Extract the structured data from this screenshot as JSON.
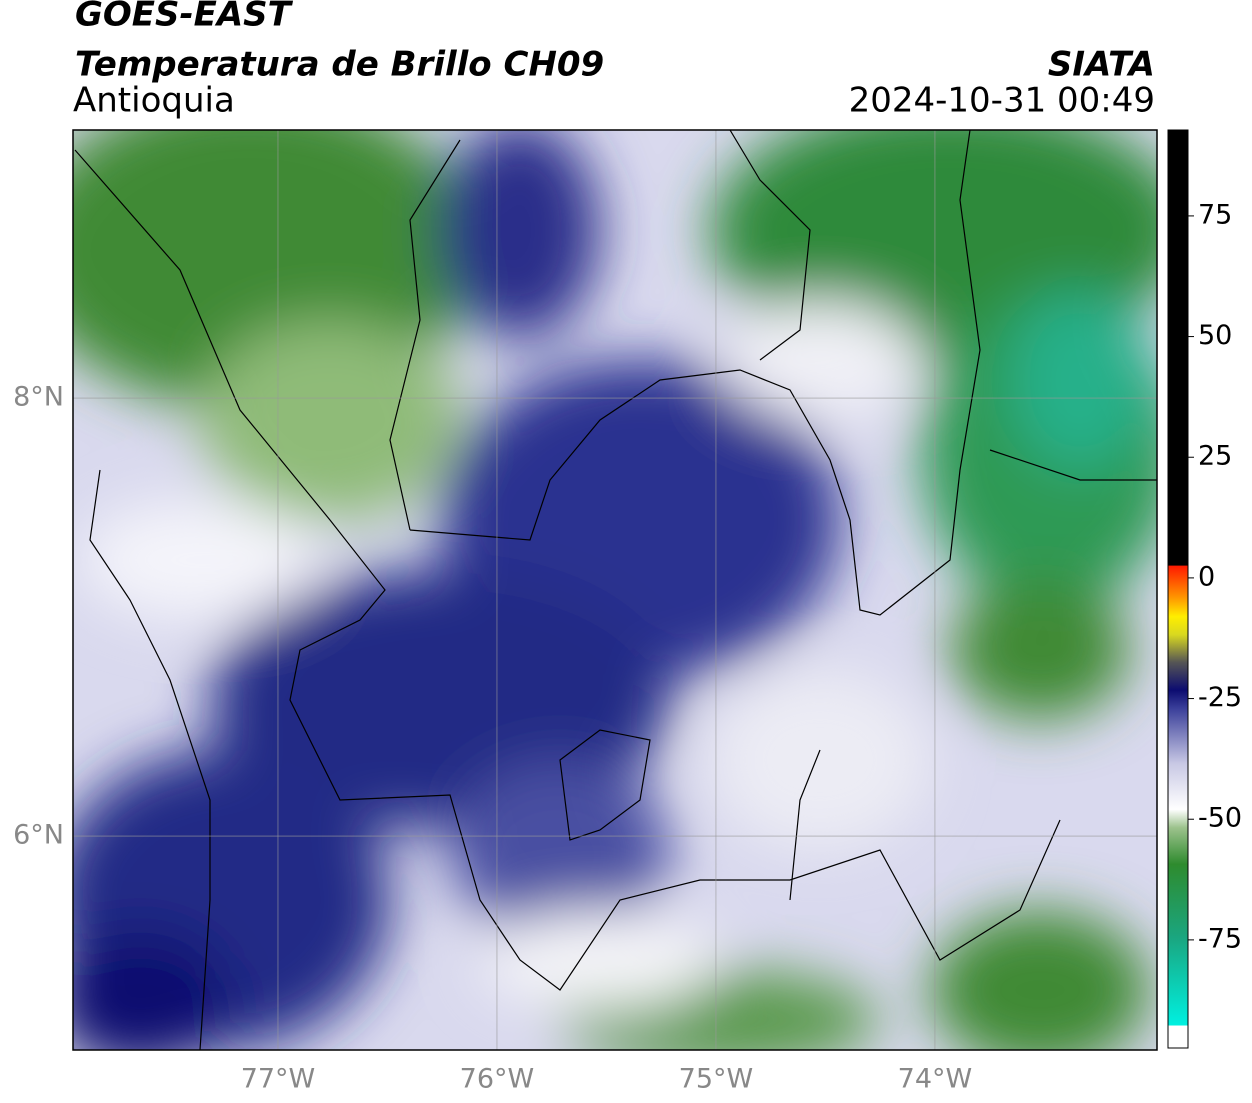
{
  "header": {
    "line1": "GOES-EAST",
    "line2": "Temperatura de Brillo CH09",
    "source": "SIATA",
    "region": "Antioquia",
    "datetime": "2024-10-31 00:49"
  },
  "map": {
    "xlim": [
      -77.936,
      -72.986
    ],
    "ylim": [
      5.023,
      9.224
    ],
    "xticks": [
      {
        "value": -77,
        "label": "77°W"
      },
      {
        "value": -76,
        "label": "76°W"
      },
      {
        "value": -75,
        "label": "75°W"
      },
      {
        "value": -74,
        "label": "74°W"
      }
    ],
    "yticks": [
      {
        "value": 8,
        "label": "8°N"
      },
      {
        "value": 6,
        "label": "6°N"
      }
    ],
    "grid": true
  },
  "colorbar": {
    "lim": [
      -97.4,
      92.8
    ],
    "ticks": [
      75,
      50,
      25,
      0,
      -25,
      -50,
      -75
    ]
  }
}
